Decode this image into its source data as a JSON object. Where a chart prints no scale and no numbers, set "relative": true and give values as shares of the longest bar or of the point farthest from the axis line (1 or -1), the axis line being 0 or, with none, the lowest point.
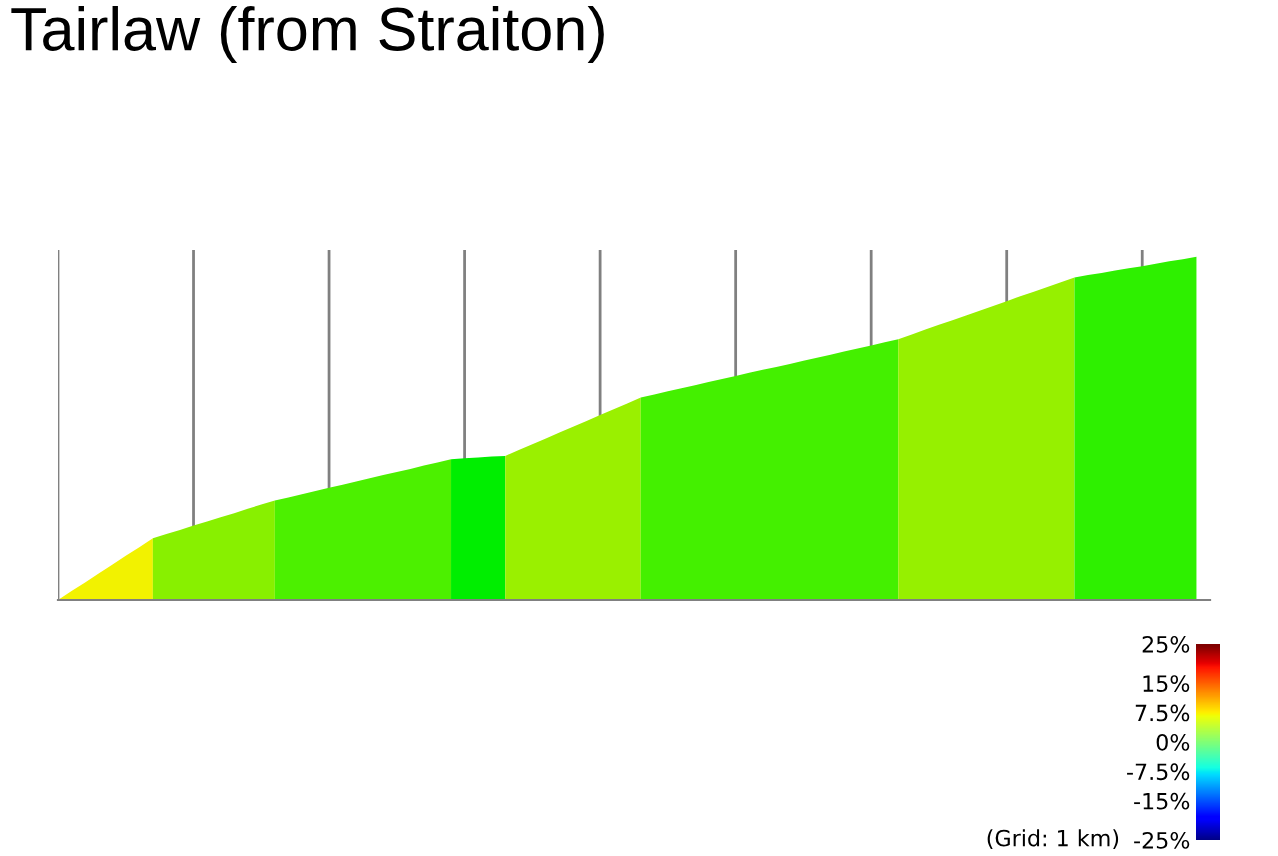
{
  "chart_data": {
    "type": "area",
    "title": "Tairlaw (from Straiton)",
    "relative": true,
    "categories": [
      null,
      null,
      null,
      null,
      null,
      null,
      null,
      null,
      null,
      null,
      null,
      null,
      null,
      null,
      null,
      null,
      null,
      null,
      null,
      null,
      null,
      null,
      null,
      null,
      null,
      null,
      null,
      null,
      null,
      null,
      null,
      null,
      null,
      null,
      null,
      null,
      null,
      null,
      null,
      null,
      null,
      null,
      null,
      null,
      null,
      null,
      null,
      null,
      null,
      null,
      null,
      null,
      null,
      null,
      null,
      null,
      null,
      null,
      null,
      null,
      null,
      null,
      null,
      null,
      null,
      null,
      null,
      null,
      null,
      null,
      null,
      null,
      null,
      null,
      null,
      null,
      null,
      null,
      null,
      null,
      null,
      null,
      null,
      null,
      null
    ],
    "series": [
      {
        "color": "#f2f200",
        "values": [
          0,
          0.026,
          0.051,
          0.077,
          0.103,
          0.129,
          0.154,
          0.18,
          null,
          null,
          null,
          null,
          null,
          null,
          null,
          null,
          null,
          null,
          null,
          null,
          null,
          null,
          null,
          null,
          null,
          null,
          null,
          null,
          null,
          null,
          null,
          null,
          null,
          null,
          null,
          null,
          null,
          null,
          null,
          null,
          null,
          null,
          null,
          null,
          null,
          null,
          null,
          null,
          null,
          null,
          null,
          null,
          null,
          null,
          null,
          null,
          null,
          null,
          null,
          null,
          null,
          null,
          null,
          null,
          null,
          null,
          null,
          null,
          null,
          null,
          null,
          null,
          null,
          null,
          null,
          null,
          null,
          null,
          null,
          null,
          null,
          null,
          null,
          null,
          null
        ]
      },
      {
        "color": "#88f000",
        "values": [
          null,
          null,
          null,
          null,
          null,
          null,
          null,
          0.18,
          0.192,
          0.204,
          0.217,
          0.229,
          0.241,
          0.253,
          0.266,
          0.278,
          0.29,
          null,
          null,
          null,
          null,
          null,
          null,
          null,
          null,
          null,
          null,
          null,
          null,
          null,
          null,
          null,
          null,
          null,
          null,
          null,
          null,
          null,
          null,
          null,
          null,
          null,
          null,
          null,
          null,
          null,
          null,
          null,
          null,
          null,
          null,
          null,
          null,
          null,
          null,
          null,
          null,
          null,
          null,
          null,
          null,
          null,
          null,
          null,
          null,
          null,
          null,
          null,
          null,
          null,
          null,
          null,
          null,
          null,
          null,
          null,
          null,
          null,
          null,
          null,
          null,
          null,
          null,
          null,
          null
        ]
      },
      {
        "color": "#4cf000",
        "values": [
          null,
          null,
          null,
          null,
          null,
          null,
          null,
          null,
          null,
          null,
          null,
          null,
          null,
          null,
          null,
          null,
          0.29,
          0.299,
          0.308,
          0.318,
          0.327,
          0.336,
          0.345,
          0.355,
          0.364,
          0.373,
          0.382,
          0.392,
          0.401,
          0.41,
          null,
          null,
          null,
          null,
          null,
          null,
          null,
          null,
          null,
          null,
          null,
          null,
          null,
          null,
          null,
          null,
          null,
          null,
          null,
          null,
          null,
          null,
          null,
          null,
          null,
          null,
          null,
          null,
          null,
          null,
          null,
          null,
          null,
          null,
          null,
          null,
          null,
          null,
          null,
          null,
          null,
          null,
          null,
          null,
          null,
          null,
          null,
          null,
          null,
          null,
          null,
          null,
          null,
          null,
          null
        ]
      },
      {
        "color": "#00ee00",
        "values": [
          null,
          null,
          null,
          null,
          null,
          null,
          null,
          null,
          null,
          null,
          null,
          null,
          null,
          null,
          null,
          null,
          null,
          null,
          null,
          null,
          null,
          null,
          null,
          null,
          null,
          null,
          null,
          null,
          null,
          0.41,
          0.413,
          0.415,
          0.418,
          0.42,
          null,
          null,
          null,
          null,
          null,
          null,
          null,
          null,
          null,
          null,
          null,
          null,
          null,
          null,
          null,
          null,
          null,
          null,
          null,
          null,
          null,
          null,
          null,
          null,
          null,
          null,
          null,
          null,
          null,
          null,
          null,
          null,
          null,
          null,
          null,
          null,
          null,
          null,
          null,
          null,
          null,
          null,
          null,
          null,
          null,
          null,
          null,
          null,
          null,
          null,
          null
        ]
      },
      {
        "color": "#9af000",
        "values": [
          null,
          null,
          null,
          null,
          null,
          null,
          null,
          null,
          null,
          null,
          null,
          null,
          null,
          null,
          null,
          null,
          null,
          null,
          null,
          null,
          null,
          null,
          null,
          null,
          null,
          null,
          null,
          null,
          null,
          null,
          null,
          null,
          null,
          0.42,
          0.437,
          0.454,
          0.471,
          0.488,
          0.505,
          0.522,
          0.539,
          0.556,
          0.573,
          0.59,
          null,
          null,
          null,
          null,
          null,
          null,
          null,
          null,
          null,
          null,
          null,
          null,
          null,
          null,
          null,
          null,
          null,
          null,
          null,
          null,
          null,
          null,
          null,
          null,
          null,
          null,
          null,
          null,
          null,
          null,
          null,
          null,
          null,
          null,
          null,
          null,
          null,
          null,
          null,
          null,
          null
        ]
      },
      {
        "color": "#44f000",
        "values": [
          null,
          null,
          null,
          null,
          null,
          null,
          null,
          null,
          null,
          null,
          null,
          null,
          null,
          null,
          null,
          null,
          null,
          null,
          null,
          null,
          null,
          null,
          null,
          null,
          null,
          null,
          null,
          null,
          null,
          null,
          null,
          null,
          null,
          null,
          null,
          null,
          null,
          null,
          null,
          null,
          null,
          null,
          null,
          0.59,
          0.599,
          0.608,
          0.617,
          0.626,
          0.635,
          0.644,
          0.653,
          0.662,
          0.671,
          0.679,
          0.688,
          0.697,
          0.706,
          0.715,
          0.724,
          0.733,
          0.742,
          0.751,
          0.76,
          null,
          null,
          null,
          null,
          null,
          null,
          null,
          null,
          null,
          null,
          null,
          null,
          null,
          null,
          null,
          null,
          null,
          null,
          null,
          null,
          null,
          null
        ]
      },
      {
        "color": "#96f000",
        "values": [
          null,
          null,
          null,
          null,
          null,
          null,
          null,
          null,
          null,
          null,
          null,
          null,
          null,
          null,
          null,
          null,
          null,
          null,
          null,
          null,
          null,
          null,
          null,
          null,
          null,
          null,
          null,
          null,
          null,
          null,
          null,
          null,
          null,
          null,
          null,
          null,
          null,
          null,
          null,
          null,
          null,
          null,
          null,
          null,
          null,
          null,
          null,
          null,
          null,
          null,
          null,
          null,
          null,
          null,
          null,
          null,
          null,
          null,
          null,
          null,
          null,
          null,
          0.76,
          0.774,
          0.788,
          0.802,
          0.815,
          0.829,
          0.843,
          0.857,
          0.871,
          0.885,
          0.898,
          0.912,
          0.926,
          0.94,
          null,
          null,
          null,
          null,
          null,
          null,
          null,
          null,
          null
        ]
      },
      {
        "color": "#2ef000",
        "values": [
          null,
          null,
          null,
          null,
          null,
          null,
          null,
          null,
          null,
          null,
          null,
          null,
          null,
          null,
          null,
          null,
          null,
          null,
          null,
          null,
          null,
          null,
          null,
          null,
          null,
          null,
          null,
          null,
          null,
          null,
          null,
          null,
          null,
          null,
          null,
          null,
          null,
          null,
          null,
          null,
          null,
          null,
          null,
          null,
          null,
          null,
          null,
          null,
          null,
          null,
          null,
          null,
          null,
          null,
          null,
          null,
          null,
          null,
          null,
          null,
          null,
          null,
          null,
          null,
          null,
          null,
          null,
          null,
          null,
          null,
          null,
          null,
          null,
          null,
          null,
          0.94,
          0.947,
          0.953,
          0.96,
          0.967,
          0.973,
          0.98,
          0.987,
          0.993,
          1.0
        ]
      }
    ],
    "grid": "x",
    "clim": [
      -25,
      25
    ],
    "cticks": [
      {
        "value": 25,
        "label": "25%"
      },
      {
        "value": 15,
        "label": "15%"
      },
      {
        "value": 7.5,
        "label": "7.5%"
      },
      {
        "value": 0,
        "label": "0%"
      },
      {
        "value": -7.5,
        "label": "-7.5%"
      },
      {
        "value": -15,
        "label": "-15%"
      },
      {
        "value": -25,
        "label": "-25%"
      }
    ],
    "annotations": [
      "(Grid: 1 km)"
    ]
  }
}
